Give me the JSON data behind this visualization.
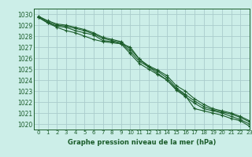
{
  "title": "Graphe pression niveau de la mer (hPa)",
  "bg_color": "#cceee8",
  "grid_color": "#aacccc",
  "line_color": "#1a5c2a",
  "xlim": [
    -0.5,
    23
  ],
  "ylim": [
    1019.5,
    1030.5
  ],
  "xticks": [
    0,
    1,
    2,
    3,
    4,
    5,
    6,
    7,
    8,
    9,
    10,
    11,
    12,
    13,
    14,
    15,
    16,
    17,
    18,
    19,
    20,
    21,
    22,
    23
  ],
  "yticks": [
    1020,
    1021,
    1022,
    1023,
    1024,
    1025,
    1026,
    1027,
    1028,
    1029,
    1030
  ],
  "series": [
    [
      1029.7,
      1029.2,
      1028.8,
      1028.5,
      1028.3,
      1028.0,
      1027.7,
      1027.5,
      1027.4,
      1027.3,
      1027.0,
      1025.9,
      1025.2,
      1024.6,
      1024.0,
      1023.2,
      1022.6,
      1021.4,
      1021.2,
      1021.0,
      1020.8,
      1020.5,
      1020.3,
      1019.8
    ],
    [
      1029.7,
      1029.2,
      1028.9,
      1028.8,
      1028.5,
      1028.3,
      1028.1,
      1027.6,
      1027.5,
      1027.3,
      1026.4,
      1025.5,
      1025.0,
      1024.5,
      1024.0,
      1023.1,
      1022.5,
      1021.9,
      1021.4,
      1021.2,
      1021.0,
      1020.7,
      1020.4,
      1020.0
    ],
    [
      1029.8,
      1029.3,
      1029.0,
      1028.9,
      1028.7,
      1028.5,
      1028.2,
      1027.8,
      1027.6,
      1027.4,
      1026.6,
      1025.7,
      1025.2,
      1024.8,
      1024.2,
      1023.3,
      1022.7,
      1022.1,
      1021.6,
      1021.3,
      1021.1,
      1020.9,
      1020.6,
      1020.2
    ],
    [
      1029.8,
      1029.4,
      1029.1,
      1029.0,
      1028.8,
      1028.6,
      1028.3,
      1027.9,
      1027.7,
      1027.5,
      1026.8,
      1025.9,
      1025.3,
      1024.9,
      1024.4,
      1023.5,
      1023.0,
      1022.3,
      1021.8,
      1021.4,
      1021.2,
      1021.0,
      1020.7,
      1020.3
    ]
  ]
}
